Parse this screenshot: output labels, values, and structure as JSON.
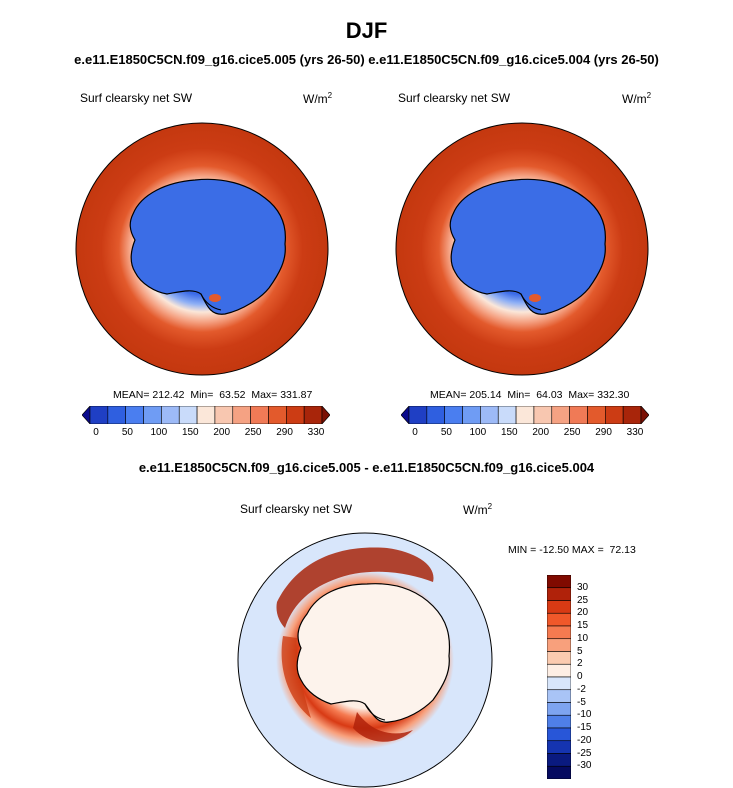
{
  "header": {
    "title": "DJF",
    "subtitle": "e.e11.E1850C5CN.f09_g16.cice5.005 (yrs 26-50) e.e11.E1850C5CN.f09_g16.cice5.004 (yrs 26-50)"
  },
  "panels": [
    {
      "variable": "Surf clearsky net SW",
      "units_base": "W/m",
      "units_exp": "2",
      "stats": "MEAN= 212.42  Min=  63.52  Max= 331.87",
      "mean": 212.42,
      "min": 63.52,
      "max": 331.87
    },
    {
      "variable": "Surf clearsky net SW",
      "units_base": "W/m",
      "units_exp": "2",
      "stats": "MEAN= 205.14  Min=  64.03  Max= 332.30",
      "mean": 205.14,
      "min": 64.03,
      "max": 332.3
    }
  ],
  "colorbar": {
    "labels": [
      "0",
      "50",
      "100",
      "150",
      "200",
      "250",
      "290",
      "330"
    ],
    "colors": [
      "#0a0a8c",
      "#1f3fc4",
      "#2f5fe0",
      "#4a7ef0",
      "#6f9cf4",
      "#9dbaf7",
      "#c9dbfa",
      "#fbe7d9",
      "#f8c7b0",
      "#f5a283",
      "#f07a56",
      "#e35a2c",
      "#cc3c14",
      "#a8250a",
      "#7a1004"
    ]
  },
  "difference": {
    "title": "e.e11.E1850C5CN.f09_g16.cice5.005 - e.e11.E1850C5CN.f09_g16.cice5.004",
    "variable": "Surf clearsky net SW",
    "units_base": "W/m",
    "units_exp": "2",
    "stats": "MIN = -12.50 MAX =  72.13",
    "min": -12.5,
    "max": 72.13,
    "levels": [
      "30",
      "25",
      "20",
      "15",
      "10",
      "5",
      "2",
      "0",
      "-2",
      "-5",
      "-10",
      "-15",
      "-20",
      "-25",
      "-30"
    ],
    "colors": [
      "#800a00",
      "#b0220a",
      "#d83a14",
      "#f0582a",
      "#f57a50",
      "#f8a07c",
      "#fbcbb0",
      "#fdeee4",
      "#d8e6fb",
      "#a9c4f6",
      "#7ea4f0",
      "#4f7fe8",
      "#2856d8",
      "#1534b0",
      "#0a1a80",
      "#050a60"
    ]
  }
}
